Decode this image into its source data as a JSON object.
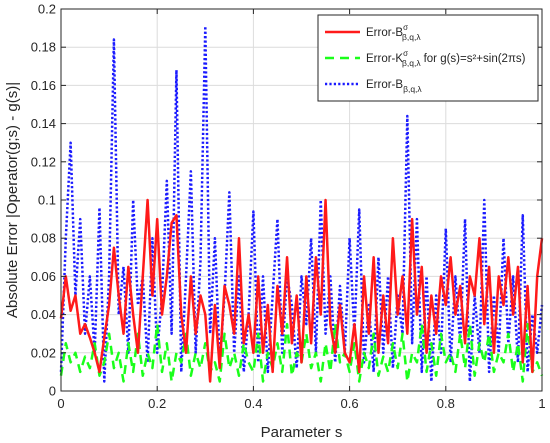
{
  "chart_data": {
    "type": "line",
    "title": "",
    "xlabel": "Parameter s",
    "ylabel": "Absolute Error |Operator(g;s) - g(s)|",
    "xlim": [
      0,
      1
    ],
    "ylim": [
      0,
      0.2
    ],
    "x_ticks": [
      0,
      0.2,
      0.4,
      0.6,
      0.8,
      1
    ],
    "x_tick_labels": [
      "0",
      "0.2",
      "0.4",
      "0.6",
      "0.8",
      "1"
    ],
    "y_ticks": [
      0,
      0.02,
      0.04,
      0.06,
      0.08,
      0.1,
      0.12,
      0.14,
      0.16,
      0.18,
      0.2
    ],
    "y_tick_labels": [
      "0",
      "0.02",
      "0.04",
      "0.06",
      "0.08",
      "0.1",
      "0.12",
      "0.14",
      "0.16",
      "0.18",
      "0.2"
    ],
    "grid": true,
    "legend_position": "top-right",
    "x": [
      0,
      0.01,
      0.02,
      0.03,
      0.04,
      0.05,
      0.06,
      0.07,
      0.08,
      0.09,
      0.1,
      0.11,
      0.12,
      0.13,
      0.14,
      0.15,
      0.16,
      0.17,
      0.18,
      0.19,
      0.2,
      0.21,
      0.22,
      0.23,
      0.24,
      0.25,
      0.26,
      0.27,
      0.28,
      0.29,
      0.3,
      0.31,
      0.32,
      0.33,
      0.34,
      0.35,
      0.36,
      0.37,
      0.38,
      0.39,
      0.4,
      0.41,
      0.42,
      0.43,
      0.44,
      0.45,
      0.46,
      0.47,
      0.48,
      0.49,
      0.5,
      0.51,
      0.52,
      0.53,
      0.54,
      0.55,
      0.56,
      0.57,
      0.58,
      0.59,
      0.6,
      0.61,
      0.62,
      0.63,
      0.64,
      0.65,
      0.66,
      0.67,
      0.68,
      0.69,
      0.7,
      0.71,
      0.72,
      0.73,
      0.74,
      0.75,
      0.76,
      0.77,
      0.78,
      0.79,
      0.8,
      0.81,
      0.82,
      0.83,
      0.84,
      0.85,
      0.86,
      0.87,
      0.88,
      0.89,
      0.9,
      0.91,
      0.92,
      0.93,
      0.94,
      0.95,
      0.96,
      0.97,
      0.98,
      0.99,
      1
    ],
    "series": [
      {
        "name_main": "Error-B",
        "name_sup": "σ",
        "name_sub": "β,q,λ",
        "name_suffix": "",
        "color": "#ff1a1a",
        "style": "solid",
        "values": [
          0.038,
          0.06,
          0.042,
          0.05,
          0.03,
          0.035,
          0.028,
          0.02,
          0.01,
          0.028,
          0.045,
          0.075,
          0.05,
          0.03,
          0.065,
          0.04,
          0.02,
          0.06,
          0.1,
          0.05,
          0.09,
          0.04,
          0.06,
          0.088,
          0.092,
          0.04,
          0.02,
          0.06,
          0.03,
          0.05,
          0.04,
          0.005,
          0.045,
          0.012,
          0.055,
          0.045,
          0.03,
          0.08,
          0.025,
          0.04,
          0.02,
          0.06,
          0.02,
          0.045,
          0.01,
          0.055,
          0.03,
          0.07,
          0.025,
          0.05,
          0.015,
          0.06,
          0.025,
          0.07,
          0.04,
          0.1,
          0.035,
          0.02,
          0.045,
          0.02,
          0.015,
          0.035,
          0.01,
          0.06,
          0.03,
          0.07,
          0.02,
          0.05,
          0.025,
          0.08,
          0.04,
          0.06,
          0.03,
          0.09,
          0.04,
          0.065,
          0.02,
          0.05,
          0.03,
          0.06,
          0.045,
          0.07,
          0.04,
          0.055,
          0.025,
          0.06,
          0.05,
          0.08,
          0.035,
          0.065,
          0.02,
          0.06,
          0.045,
          0.07,
          0.04,
          0.065,
          0.015,
          0.055,
          0.01,
          0.06,
          0.08
        ]
      },
      {
        "name_main": "Error-K",
        "name_sup": "σ",
        "name_sub": "β,q,λ",
        "name_suffix": "for g(s)=s²+sin(2πs)",
        "color": "#1aff1a",
        "style": "dashed",
        "values": [
          0.008,
          0.025,
          0.015,
          0.02,
          0.01,
          0.018,
          0.012,
          0.025,
          0.008,
          0.015,
          0.03,
          0.012,
          0.02,
          0.005,
          0.025,
          0.01,
          0.03,
          0.008,
          0.02,
          0.012,
          0.035,
          0.01,
          0.025,
          0.005,
          0.02,
          0.015,
          0.03,
          0.008,
          0.02,
          0.012,
          0.025,
          0.01,
          0.015,
          0.005,
          0.03,
          0.012,
          0.02,
          0.008,
          0.025,
          0.015,
          0.01,
          0.03,
          0.005,
          0.02,
          0.012,
          0.025,
          0.01,
          0.035,
          0.008,
          0.02,
          0.015,
          0.03,
          0.012,
          0.02,
          0.005,
          0.025,
          0.01,
          0.035,
          0.015,
          0.02,
          0.01,
          0.025,
          0.005,
          0.02,
          0.012,
          0.03,
          0.008,
          0.018,
          0.01,
          0.025,
          0.012,
          0.03,
          0.005,
          0.02,
          0.015,
          0.035,
          0.01,
          0.025,
          0.008,
          0.03,
          0.015,
          0.02,
          0.01,
          0.03,
          0.012,
          0.035,
          0.008,
          0.025,
          0.015,
          0.03,
          0.01,
          0.02,
          0.015,
          0.03,
          0.01,
          0.025,
          0.005,
          0.035,
          0.01,
          0.015,
          0.008
        ]
      },
      {
        "name_main": "Error-B",
        "name_sup": "",
        "name_sub": "β,q,λ",
        "name_suffix": "",
        "color": "#1a1aff",
        "style": "dotted",
        "values": [
          0.01,
          0.08,
          0.13,
          0.05,
          0.09,
          0.03,
          0.06,
          0.02,
          0.096,
          0.005,
          0.06,
          0.184,
          0.04,
          0.065,
          0.02,
          0.1,
          0.045,
          0.06,
          0.015,
          0.08,
          0.02,
          0.05,
          0.11,
          0.03,
          0.168,
          0.01,
          0.06,
          0.115,
          0.02,
          0.068,
          0.191,
          0.03,
          0.08,
          0.015,
          0.05,
          0.104,
          0.02,
          0.06,
          0.01,
          0.04,
          0.094,
          0.015,
          0.06,
          0.01,
          0.05,
          0.09,
          0.02,
          0.06,
          0.045,
          0.012,
          0.06,
          0.035,
          0.08,
          0.02,
          0.1,
          0.03,
          0.06,
          0.015,
          0.055,
          0.02,
          0.08,
          0.03,
          0.095,
          0.015,
          0.045,
          0.01,
          0.07,
          0.02,
          0.06,
          0.012,
          0.05,
          0.03,
          0.144,
          0.025,
          0.09,
          0.01,
          0.06,
          0.005,
          0.05,
          0.02,
          0.085,
          0.015,
          0.06,
          0.025,
          0.09,
          0.005,
          0.05,
          0.02,
          0.1,
          0.01,
          0.05,
          0.02,
          0.08,
          0.025,
          0.06,
          0.015,
          0.092,
          0.01,
          0.04,
          0.02,
          0.045
        ]
      }
    ]
  }
}
